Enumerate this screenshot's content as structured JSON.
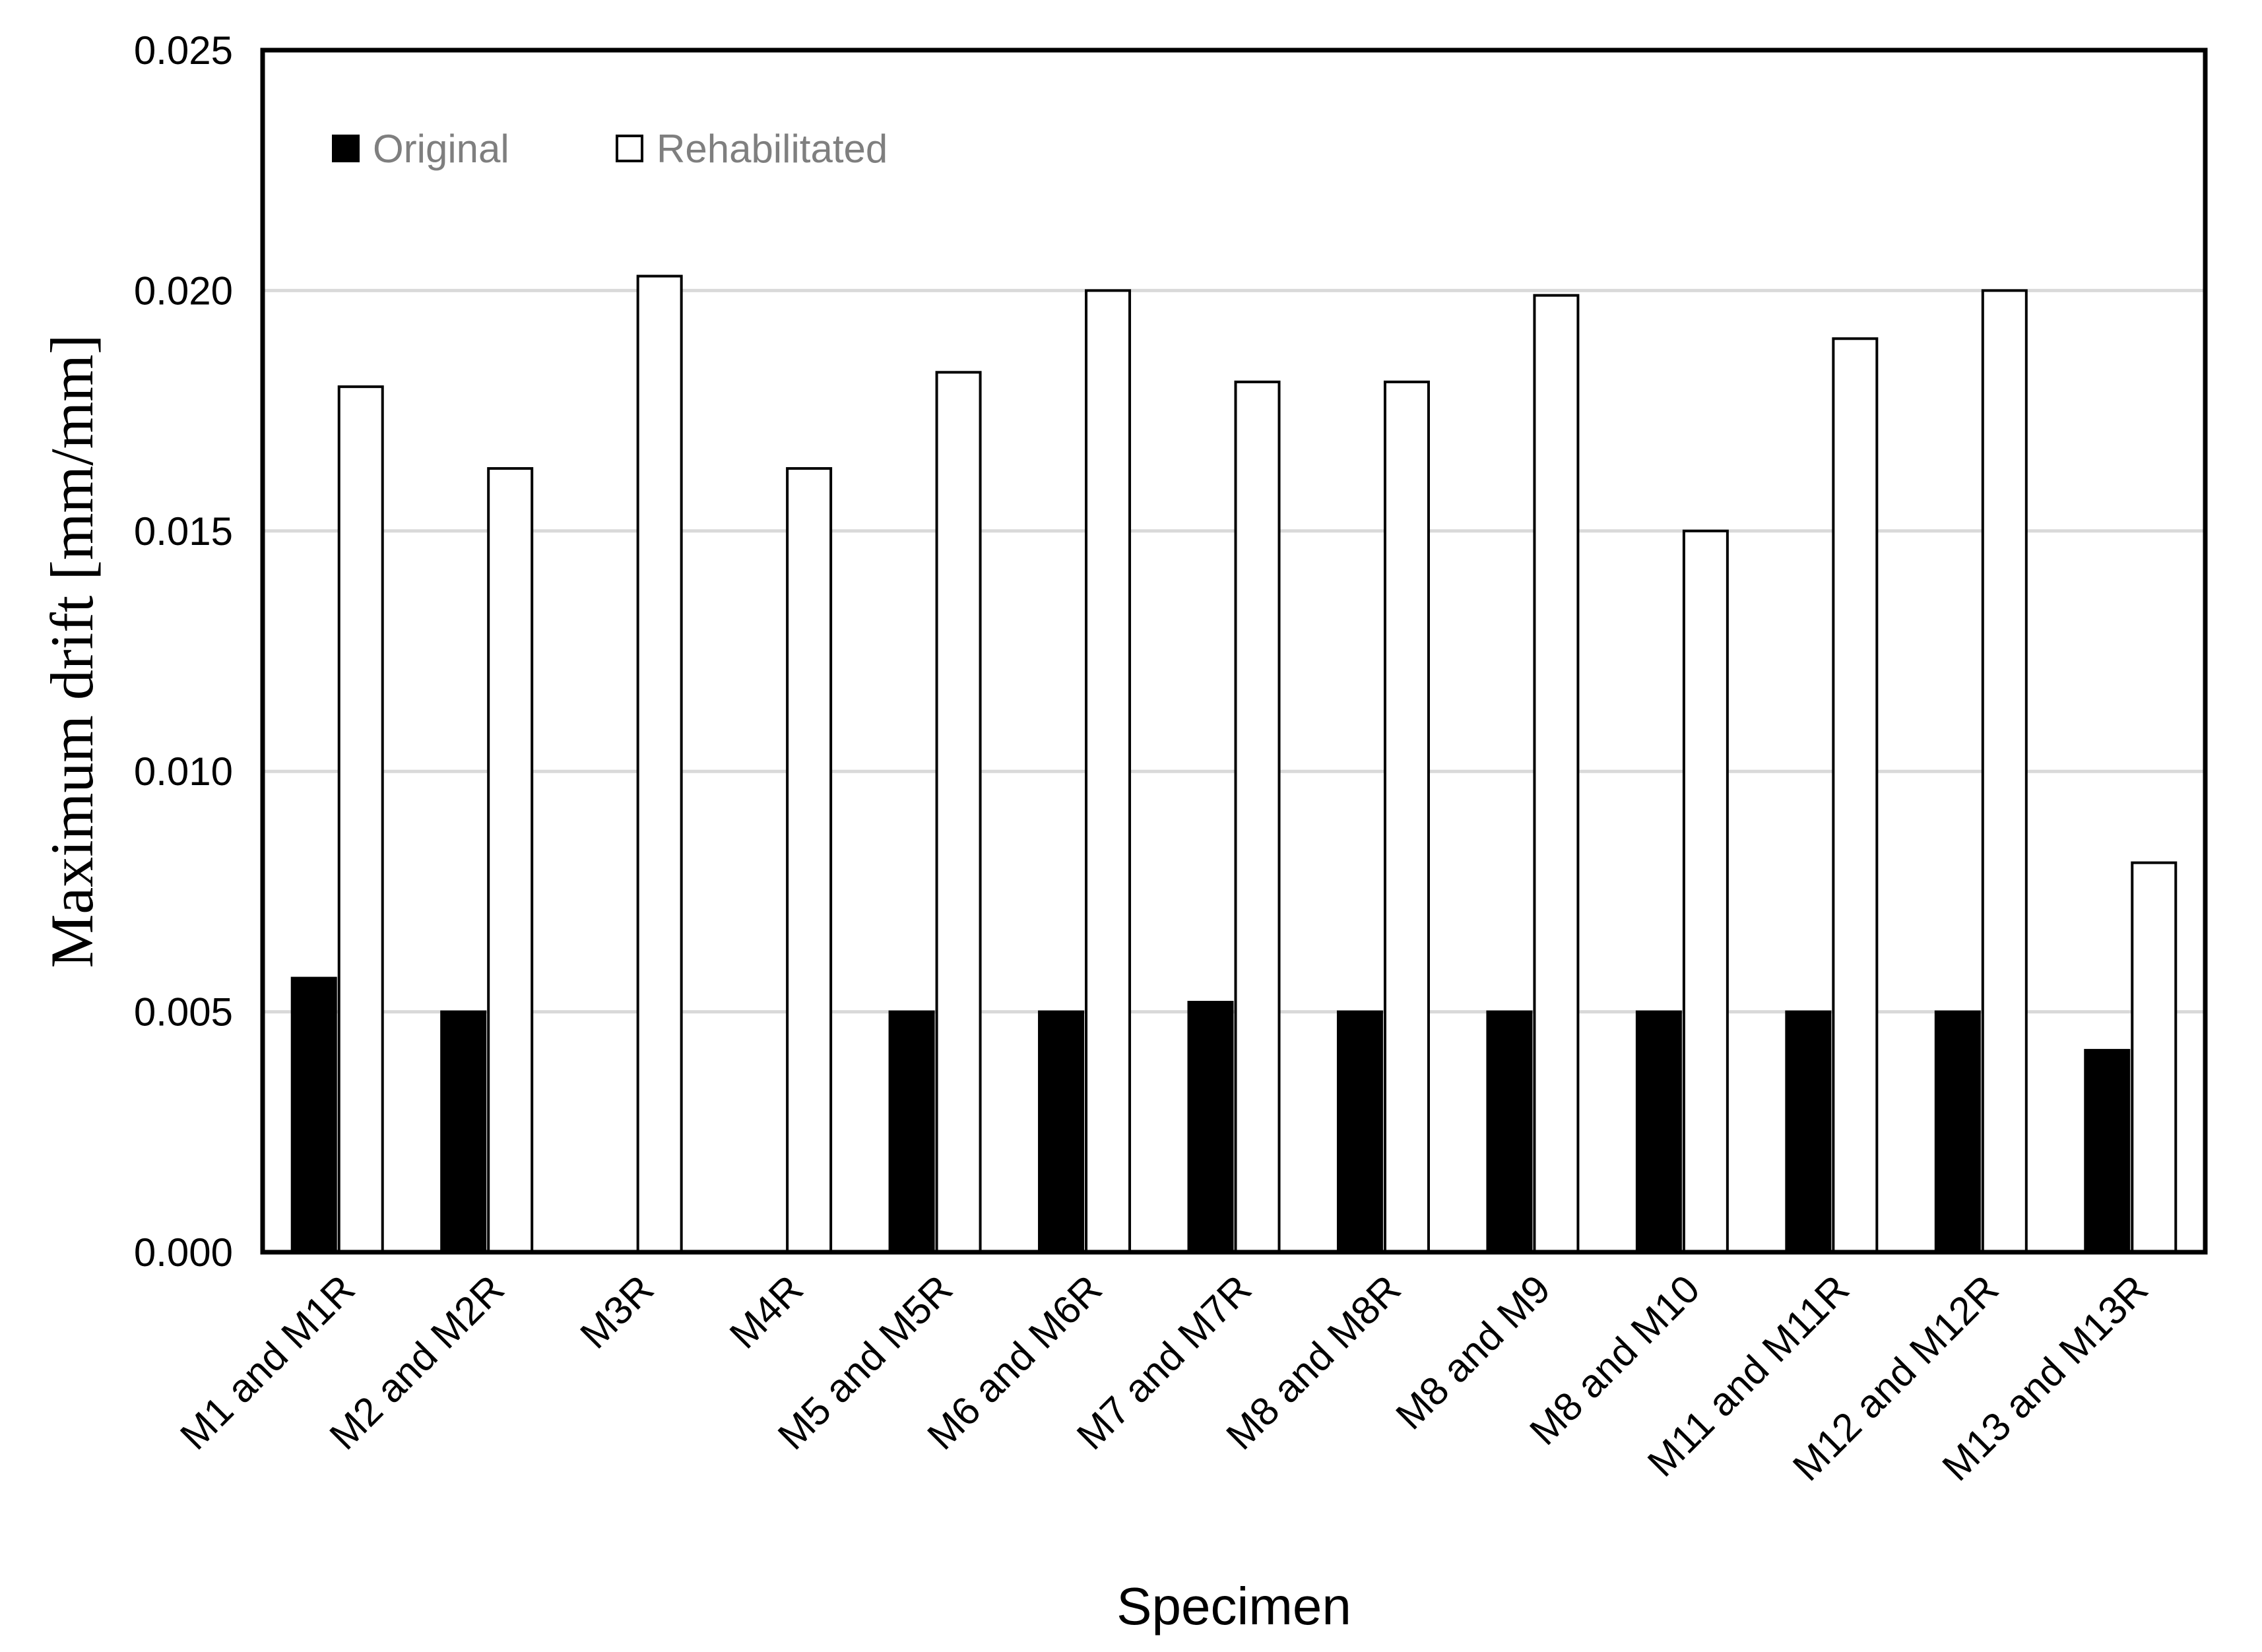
{
  "chart_data": {
    "type": "bar",
    "title": "",
    "xlabel": "Specimen",
    "ylabel": "Maximum drift [mm/mm]",
    "ylim": [
      0,
      0.025
    ],
    "yticks": [
      "0.000",
      "0.005",
      "0.010",
      "0.015",
      "0.020",
      "0.025"
    ],
    "ytick_values": [
      0,
      0.005,
      0.01,
      0.015,
      0.02,
      0.025
    ],
    "grid": true,
    "legend_position": "top-left",
    "categories": [
      "M1 and M1R",
      "M2 and M2R",
      "M3R",
      "M4R",
      "M5 and M5R",
      "M6 and M6R",
      "M7 and M7R",
      "M8 and M8R",
      "M8 and M9",
      "M8 and M10",
      "M11 and M11R",
      "M12 and M12R",
      "M13 and M13R"
    ],
    "series": [
      {
        "name": "Original",
        "color": "#000000",
        "values": [
          0.0057,
          0.005,
          null,
          null,
          0.005,
          0.005,
          0.0052,
          0.005,
          0.005,
          0.005,
          0.005,
          0.005,
          0.0042
        ]
      },
      {
        "name": "Rehabilitated",
        "color": "#ffffff",
        "values": [
          0.018,
          0.0163,
          0.0203,
          0.0163,
          0.0183,
          0.02,
          0.0181,
          0.0181,
          0.0199,
          0.015,
          0.019,
          0.02,
          0.0081
        ]
      }
    ]
  }
}
